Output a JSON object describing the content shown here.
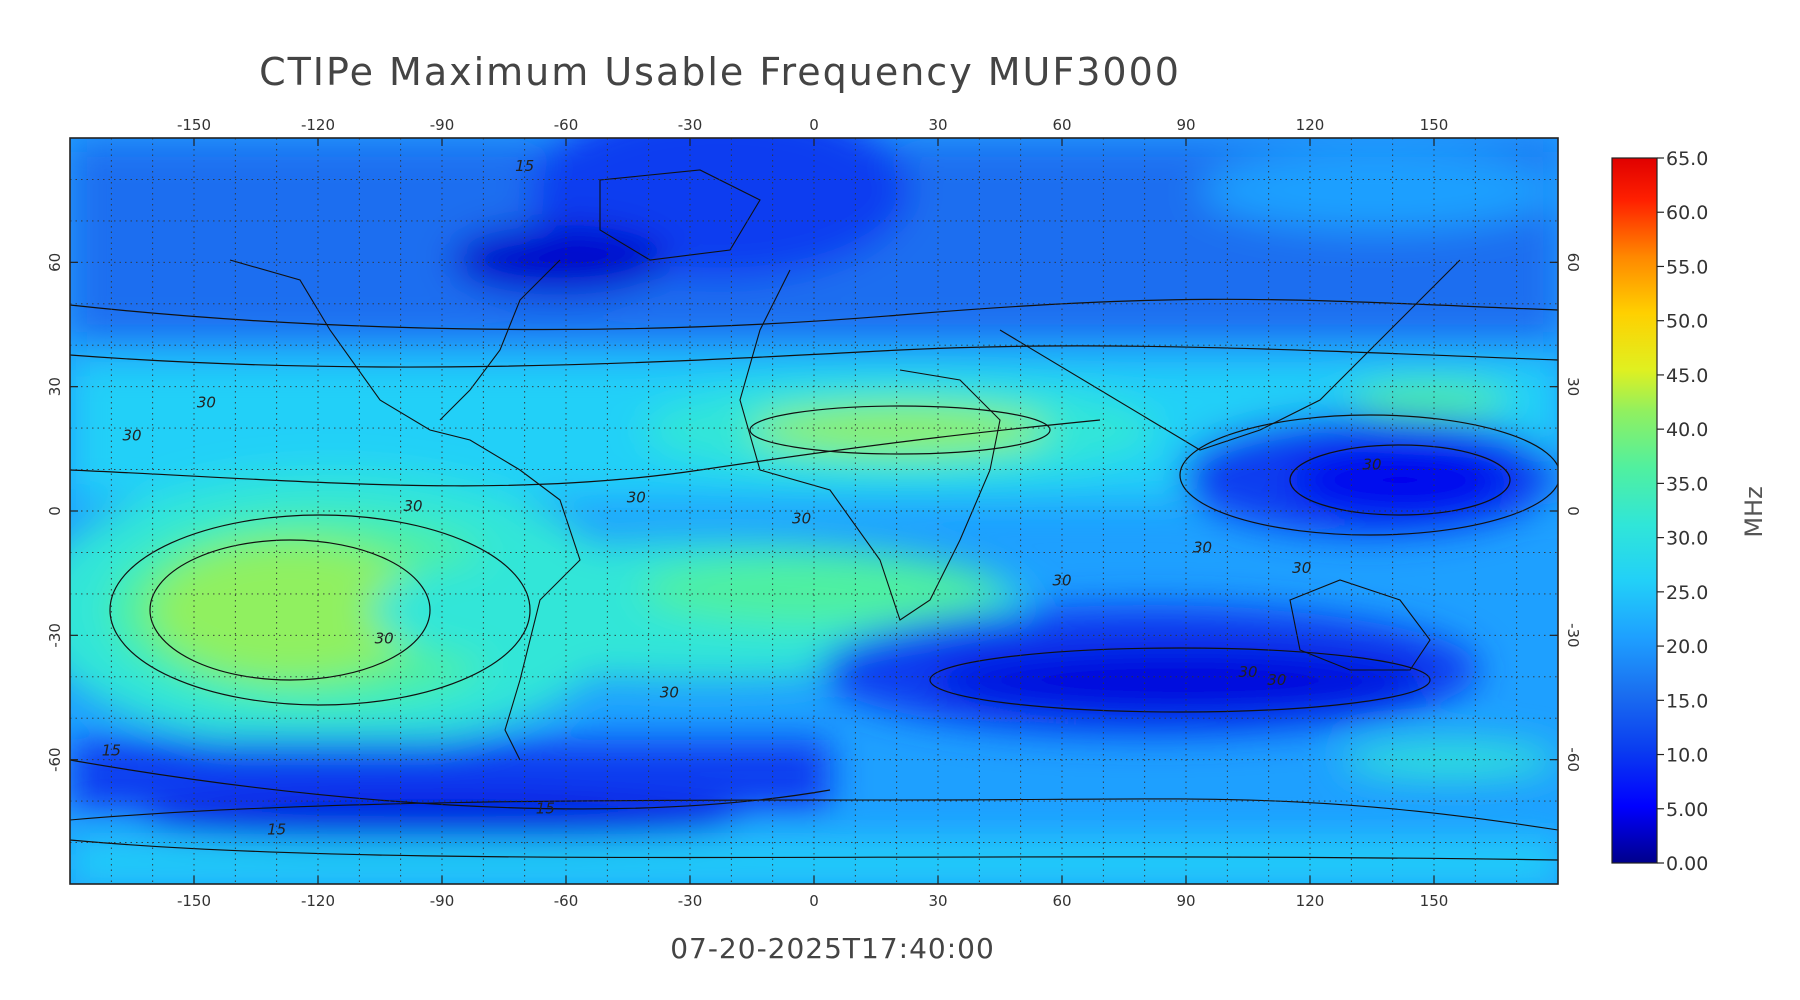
{
  "title": "CTIPe Maximum Usable Frequency MUF3000",
  "timestamp": "07-20-2025T17:40:00",
  "map": {
    "lon_ticks": [
      "-150",
      "-120",
      "-90",
      "-60",
      "-30",
      "0",
      "30",
      "60",
      "90",
      "120",
      "150"
    ],
    "lat_ticks": [
      "60",
      "30",
      "0",
      "-30",
      "-60"
    ],
    "lon_range": [
      -180,
      180
    ],
    "lat_range": [
      -90,
      90
    ],
    "grid": true,
    "contour_labels": [
      "15",
      "30",
      "30",
      "30",
      "30",
      "30",
      "30",
      "30",
      "30",
      "30",
      "30",
      "30",
      "15",
      "15",
      "15",
      "30",
      "30"
    ]
  },
  "colorbar": {
    "unit": "MHz",
    "ticks": [
      "0.00",
      "5.00",
      "10.0",
      "15.0",
      "20.0",
      "25.0",
      "30.0",
      "35.0",
      "40.0",
      "45.0",
      "50.0",
      "55.0",
      "60.0",
      "65.0"
    ],
    "colors": [
      "#00008b",
      "#0000ff",
      "#0a3cf0",
      "#1a6ef0",
      "#1ea0ff",
      "#22d0f8",
      "#30e6d8",
      "#50f0a0",
      "#90f060",
      "#e0f020",
      "#ffd000",
      "#ff8800",
      "#ff2000",
      "#e00000"
    ]
  }
}
